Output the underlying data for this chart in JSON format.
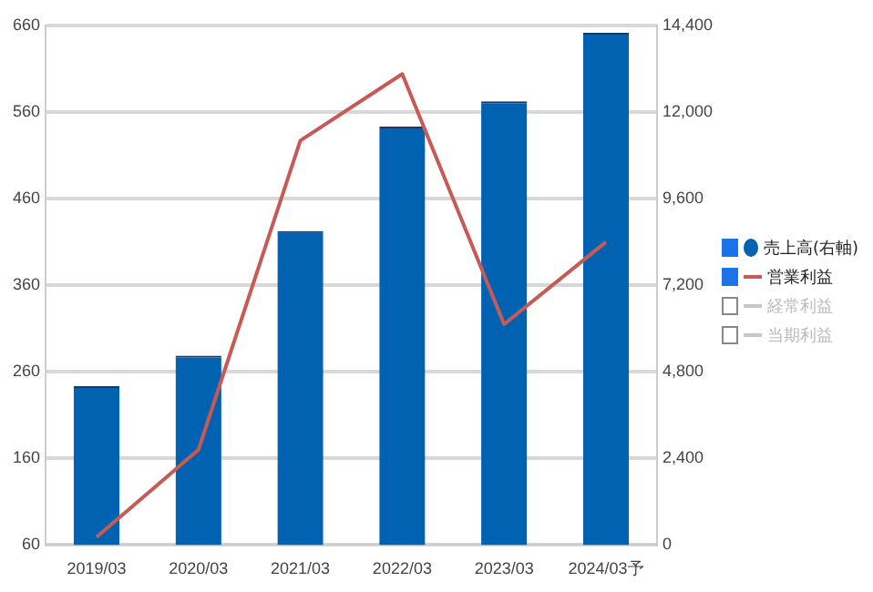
{
  "chart_data": {
    "type": "bar",
    "categories": [
      "2019/03",
      "2020/03",
      "2021/03",
      "2022/03",
      "2023/03",
      "2024/03予"
    ],
    "series": [
      {
        "name": "売上高(右軸)",
        "axis": "y2",
        "color": "#0062b1",
        "values": [
          4400,
          5250,
          8700,
          11600,
          12300,
          14200
        ]
      },
      {
        "name": "営業利益",
        "type": "line",
        "axis": "y",
        "color": "#c85a55",
        "values": [
          69,
          170,
          527,
          604,
          315,
          410
        ]
      },
      {
        "name": "経常利益",
        "type": "line",
        "axis": "y",
        "color": "#c8c8c8",
        "values": [
          null,
          null,
          null,
          null,
          null,
          null
        ]
      },
      {
        "name": "当期利益",
        "type": "line",
        "axis": "y",
        "color": "#c8c8c8",
        "values": [
          null,
          null,
          null,
          null,
          null,
          null
        ]
      }
    ],
    "ylim": [
      60,
      660
    ],
    "yticks": [
      60,
      160,
      260,
      360,
      460,
      560,
      660
    ],
    "y2lim": [
      0,
      14400
    ],
    "y2ticks": [
      0,
      {
        "value": 2400,
        "label": "2,400"
      },
      {
        "value": 4800,
        "label": "4,800"
      },
      {
        "value": 7200,
        "label": "7,200"
      },
      {
        "value": 9600,
        "label": "9,600"
      },
      {
        "value": 12000,
        "label": "12,000"
      },
      {
        "value": 14400,
        "label": "14,400"
      }
    ],
    "grid": "y",
    "legend": "right",
    "marker": "none",
    "line_style": "solid"
  }
}
